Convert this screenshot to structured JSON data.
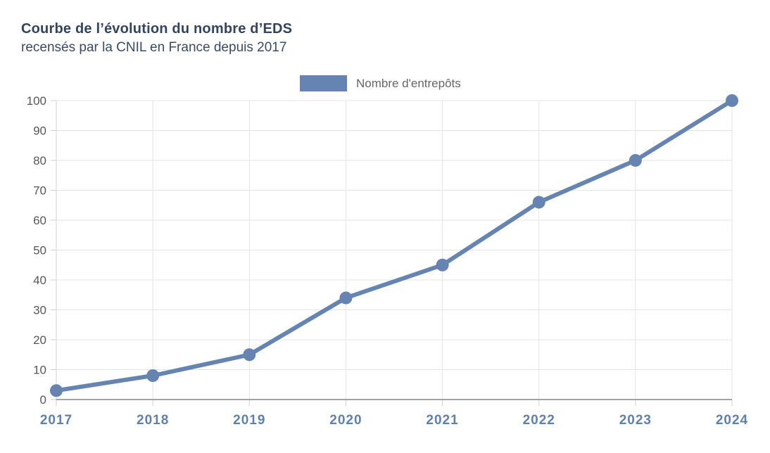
{
  "header": {
    "title": "Courbe de l’évolution du nombre d’EDS",
    "subtitle": "recensés par la CNIL en France depuis 2017"
  },
  "legend": {
    "label": "Nombre d'entrepôts",
    "swatch_color": "#6684b2"
  },
  "chart_data": {
    "type": "line",
    "title": "Courbe de l’évolution du nombre d’EDS",
    "subtitle": "recensés par la CNIL en France depuis 2017",
    "categories": [
      "2017",
      "2018",
      "2019",
      "2020",
      "2021",
      "2022",
      "2023",
      "2024"
    ],
    "series": [
      {
        "name": "Nombre d'entrepôts",
        "values": [
          3,
          8,
          15,
          34,
          45,
          66,
          80,
          100
        ]
      }
    ],
    "xlabel": "",
    "ylabel": "",
    "ylim": [
      0,
      100
    ],
    "ytick_step": 10,
    "grid": true,
    "legend_position": "top-center",
    "marker": "circle",
    "line_color": "#6684b2",
    "colors": {
      "line": "#6684b2",
      "grid": "#e4e4e4",
      "x_axis": "#a3a3a3",
      "y_axis": "#d6d6d6",
      "tick": "#cfcfcf",
      "x_label": "#5e81ad",
      "y_label": "#58585a",
      "title": "#334460"
    }
  }
}
